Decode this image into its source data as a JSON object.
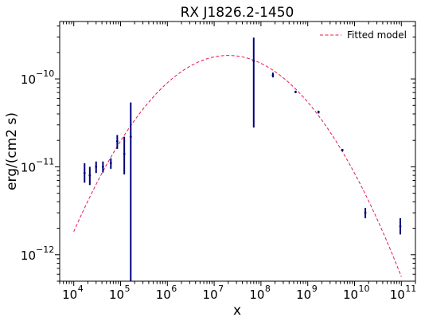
{
  "chart_data": {
    "type": "scatter",
    "title": "RX J1826.2-1450",
    "xlabel": "x",
    "ylabel": "erg/(cm2 s)",
    "xscale": "log",
    "yscale": "log",
    "xlim": [
      5000,
      200000000000
    ],
    "ylim": [
      5e-13,
      4.5e-10
    ],
    "x_ticks": [
      {
        "value": 10000,
        "base": "10",
        "exp": "4"
      },
      {
        "value": 100000,
        "base": "10",
        "exp": "5"
      },
      {
        "value": 1000000,
        "base": "10",
        "exp": "6"
      },
      {
        "value": 10000000,
        "base": "10",
        "exp": "7"
      },
      {
        "value": 100000000,
        "base": "10",
        "exp": "8"
      },
      {
        "value": 1000000000,
        "base": "10",
        "exp": "9"
      },
      {
        "value": 10000000000,
        "base": "10",
        "exp": "10"
      },
      {
        "value": 100000000000,
        "base": "10",
        "exp": "11"
      }
    ],
    "y_ticks": [
      {
        "value": 1e-12,
        "base": "10",
        "exp": "−12"
      },
      {
        "value": 1e-11,
        "base": "10",
        "exp": "−11"
      },
      {
        "value": 1e-10,
        "base": "10",
        "exp": "−10"
      }
    ],
    "grid": false,
    "legend": {
      "position": "top-right",
      "entries": [
        {
          "label": "Fitted model",
          "style": "dashed",
          "color": "#e8194a"
        }
      ]
    },
    "series": [
      {
        "name": "Fitted model",
        "type": "line",
        "color": "#e8194a",
        "style": "dashed",
        "model": {
          "peak_x": 20000000,
          "peak_y": 1.85e-10,
          "log_curvature": 0.184
        },
        "x_range": [
          10000,
          100000000000
        ]
      },
      {
        "type": "errorbar",
        "color": "#00007a",
        "points": [
          {
            "x": 17000,
            "y": 8.5e-12,
            "ylo": 6.6e-12,
            "yhi": 1.1e-11
          },
          {
            "x": 22000,
            "y": 8e-12,
            "ylo": 6.2e-12,
            "yhi": 1e-11
          },
          {
            "x": 30000,
            "y": 1e-11,
            "ylo": 8.5e-12,
            "yhi": 1.15e-11
          },
          {
            "x": 42000,
            "y": 1e-11,
            "ylo": 8.6e-12,
            "yhi": 1.15e-11
          },
          {
            "x": 62000,
            "y": 1.1e-11,
            "ylo": 9.5e-12,
            "yhi": 1.25e-11
          },
          {
            "x": 85000,
            "y": 1.95e-11,
            "ylo": 1.6e-11,
            "yhi": 2.3e-11
          },
          {
            "x": 120000,
            "y": 1.4e-11,
            "ylo": 8.2e-12,
            "yhi": 2.2e-11
          },
          {
            "x": 165000,
            "y": 2.2e-11,
            "ylo": 5e-13,
            "yhi": 5.4e-11
          },
          {
            "x": 70000000,
            "y": 1.6e-10,
            "ylo": 2.8e-11,
            "yhi": 2.95e-10
          },
          {
            "x": 180000000,
            "y": 1.1e-10,
            "ylo": 1.04e-10,
            "yhi": 1.18e-10
          },
          {
            "x": 550000000,
            "y": 7.1e-11,
            "ylo": 6.9e-11,
            "yhi": 7.35e-11
          },
          {
            "x": 1700000000,
            "y": 4.2e-11,
            "ylo": 4.05e-11,
            "yhi": 4.35e-11
          },
          {
            "x": 5500000000,
            "y": 1.55e-11,
            "ylo": 1.5e-11,
            "yhi": 1.6e-11
          },
          {
            "x": 17000000000,
            "y": 3e-12,
            "ylo": 2.6e-12,
            "yhi": 3.4e-12
          },
          {
            "x": 95000000000,
            "y": 2.1e-12,
            "ylo": 1.7e-12,
            "yhi": 2.6e-12
          }
        ]
      }
    ]
  }
}
